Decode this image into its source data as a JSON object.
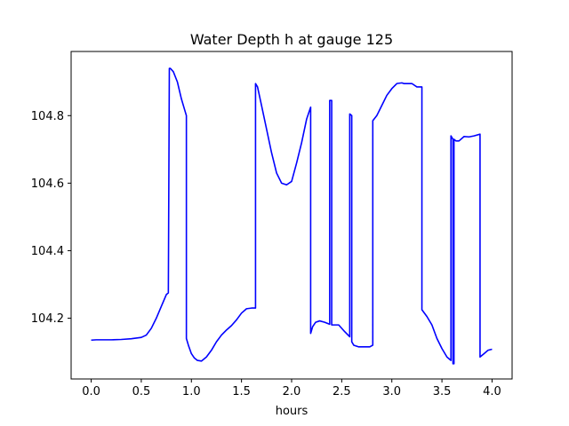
{
  "chart_data": {
    "type": "line",
    "title": "Water Depth h at gauge 125",
    "xlabel": "hours",
    "ylabel": "",
    "xlim": [
      -0.2,
      4.2
    ],
    "ylim": [
      104.02,
      104.99
    ],
    "xticks": [
      0.0,
      0.5,
      1.0,
      1.5,
      2.0,
      2.5,
      3.0,
      3.5,
      4.0
    ],
    "xtick_labels": [
      "0.0",
      "0.5",
      "1.0",
      "1.5",
      "2.0",
      "2.5",
      "3.0",
      "3.5",
      "4.0"
    ],
    "yticks": [
      104.2,
      104.4,
      104.6,
      104.8
    ],
    "ytick_labels": [
      "104.2",
      "104.4",
      "104.6",
      "104.8"
    ],
    "grid": false,
    "legend": "none",
    "series": [
      {
        "color": "#0000ff",
        "x": [
          0.0,
          0.05,
          0.2,
          0.3,
          0.4,
          0.5,
          0.55,
          0.6,
          0.65,
          0.7,
          0.75,
          0.77,
          0.78,
          0.79,
          0.82,
          0.86,
          0.9,
          0.93,
          0.95,
          0.95,
          0.97,
          1.0,
          1.03,
          1.06,
          1.1,
          1.15,
          1.2,
          1.25,
          1.3,
          1.35,
          1.4,
          1.45,
          1.5,
          1.55,
          1.6,
          1.63,
          1.64,
          1.64,
          1.66,
          1.7,
          1.75,
          1.8,
          1.85,
          1.9,
          1.95,
          2.0,
          2.05,
          2.1,
          2.15,
          2.19,
          2.19,
          2.21,
          2.24,
          2.28,
          2.33,
          2.38,
          2.38,
          2.39,
          2.4,
          2.4,
          2.42,
          2.47,
          2.53,
          2.58,
          2.58,
          2.6,
          2.6,
          2.6,
          2.62,
          2.67,
          2.72,
          2.78,
          2.81,
          2.81,
          2.85,
          2.9,
          2.95,
          3.0,
          3.05,
          3.1,
          3.12,
          3.15,
          3.2,
          3.25,
          3.3,
          3.3,
          3.35,
          3.4,
          3.45,
          3.5,
          3.55,
          3.59,
          3.59,
          3.61,
          3.61,
          3.62,
          3.62,
          3.64,
          3.67,
          3.72,
          3.77,
          3.82,
          3.88,
          3.88,
          3.92,
          3.96,
          4.0
        ],
        "y": [
          104.135,
          104.136,
          104.136,
          104.137,
          104.139,
          104.143,
          104.15,
          104.17,
          104.2,
          104.235,
          104.27,
          104.275,
          104.94,
          104.94,
          104.93,
          104.9,
          104.85,
          104.82,
          104.8,
          104.14,
          104.12,
          104.095,
          104.082,
          104.075,
          104.073,
          104.085,
          104.105,
          104.13,
          104.15,
          104.165,
          104.178,
          104.195,
          104.215,
          104.228,
          104.23,
          104.23,
          104.23,
          104.895,
          104.885,
          104.83,
          104.76,
          104.69,
          104.63,
          104.6,
          104.595,
          104.605,
          104.66,
          104.72,
          104.79,
          104.825,
          104.155,
          104.175,
          104.188,
          104.192,
          104.188,
          104.182,
          104.845,
          104.845,
          104.845,
          104.18,
          104.18,
          104.18,
          104.16,
          104.145,
          104.805,
          104.8,
          104.8,
          104.13,
          104.12,
          104.115,
          104.115,
          104.115,
          104.12,
          104.785,
          104.8,
          104.83,
          104.86,
          104.88,
          104.895,
          104.897,
          104.895,
          104.895,
          104.895,
          104.885,
          104.885,
          104.225,
          104.205,
          104.18,
          104.14,
          104.11,
          104.085,
          104.075,
          104.74,
          104.73,
          104.065,
          104.065,
          104.73,
          104.725,
          104.725,
          104.738,
          104.737,
          104.74,
          104.745,
          104.085,
          104.095,
          104.105,
          104.108
        ]
      }
    ]
  }
}
